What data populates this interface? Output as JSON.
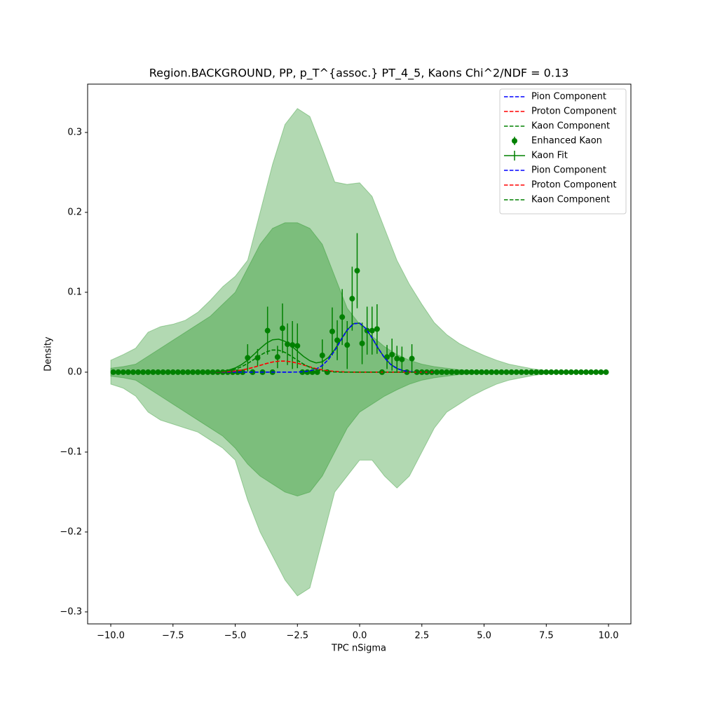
{
  "chart_data": {
    "type": "line",
    "title": "Region.BACKGROUND, PP, p_T^{assoc.} PT_4_5, Kaons Chi^2/NDF = 0.13",
    "xlabel": "TPC nSigma",
    "ylabel": "Density",
    "xlim": [
      -10.93,
      10.9
    ],
    "ylim": [
      -0.315,
      0.3605
    ],
    "xticks": [
      {
        "value": -10,
        "label": "−10.0"
      },
      {
        "value": -7.5,
        "label": "−7.5"
      },
      {
        "value": -5,
        "label": "−5.0"
      },
      {
        "value": -2.5,
        "label": "−2.5"
      },
      {
        "value": 0,
        "label": "0.0"
      },
      2.5,
      {
        "value": 5,
        "label": "5.0"
      },
      7.5,
      {
        "value": 10,
        "label": "10.0"
      }
    ],
    "yticks": [
      {
        "value": -0.3,
        "label": "−0.3"
      },
      {
        "value": -0.2,
        "label": "−0.2"
      },
      {
        "value": -0.1,
        "label": "−0.1"
      },
      {
        "value": 0,
        "label": "0.0"
      },
      0.1,
      0.2,
      0.3
    ],
    "legend": "upper right",
    "areas": [
      {
        "color": "#008000",
        "opacity": 0.3,
        "x": [
          -10,
          -9.5,
          -9,
          -8.5,
          -8,
          -7.5,
          -7,
          -6.5,
          -6,
          -5.5,
          -5,
          -4.5,
          -4,
          -3.5,
          -3,
          -2.5,
          -2,
          -1.5,
          -1,
          -0.5,
          0,
          0.5,
          1,
          1.5,
          2,
          2.5,
          3,
          3.5,
          4,
          4.5,
          5,
          5.5,
          6,
          6.5,
          7,
          7.5,
          8,
          8.5,
          9,
          9.5,
          10
        ],
        "upper": [
          0.015,
          0.022,
          0.03,
          0.05,
          0.057,
          0.06,
          0.065,
          0.075,
          0.09,
          0.107,
          0.12,
          0.14,
          0.2,
          0.26,
          0.31,
          0.33,
          0.32,
          0.28,
          0.238,
          0.235,
          0.237,
          0.22,
          0.18,
          0.14,
          0.11,
          0.085,
          0.062,
          0.047,
          0.036,
          0.028,
          0.021,
          0.015,
          0.01,
          0.007,
          0.004,
          0.002,
          0.001,
          0.0005,
          0.0005,
          0.0005,
          0.0005
        ],
        "lower": [
          -0.015,
          -0.02,
          -0.03,
          -0.05,
          -0.06,
          -0.065,
          -0.07,
          -0.075,
          -0.085,
          -0.095,
          -0.11,
          -0.16,
          -0.2,
          -0.23,
          -0.26,
          -0.28,
          -0.27,
          -0.21,
          -0.15,
          -0.13,
          -0.11,
          -0.11,
          -0.13,
          -0.145,
          -0.13,
          -0.1,
          -0.07,
          -0.05,
          -0.04,
          -0.03,
          -0.022,
          -0.015,
          -0.01,
          -0.007,
          -0.004,
          -0.002,
          -0.001,
          -0.0005,
          -0.0005,
          -0.0005,
          -0.0005
        ]
      },
      {
        "color": "#008000",
        "opacity": 0.3,
        "x": [
          -10,
          -9.5,
          -9,
          -8.5,
          -8,
          -7.5,
          -7,
          -6.5,
          -6,
          -5.5,
          -5,
          -4.5,
          -4,
          -3.5,
          -3,
          -2.5,
          -2,
          -1.5,
          -1,
          -0.5,
          0,
          0.5,
          1,
          1.5,
          2,
          2.5,
          3,
          3.5,
          4,
          4.5,
          5,
          5.5,
          6,
          6.5,
          7,
          7.5,
          8,
          8.5,
          9,
          9.5,
          10
        ],
        "upper": [
          0.005,
          0.007,
          0.01,
          0.02,
          0.03,
          0.04,
          0.05,
          0.06,
          0.07,
          0.085,
          0.1,
          0.13,
          0.16,
          0.18,
          0.187,
          0.187,
          0.18,
          0.16,
          0.12,
          0.08,
          0.06,
          0.045,
          0.032,
          0.022,
          0.015,
          0.01,
          0.007,
          0.005,
          0.003,
          0.002,
          0.0015,
          0.001,
          0.001,
          0.0008,
          0.0005,
          0.0003,
          0.0002,
          0.0002,
          0.0002,
          0.0002,
          0.0002
        ],
        "lower": [
          -0.005,
          -0.007,
          -0.01,
          -0.02,
          -0.03,
          -0.04,
          -0.05,
          -0.06,
          -0.07,
          -0.08,
          -0.095,
          -0.115,
          -0.13,
          -0.14,
          -0.15,
          -0.155,
          -0.15,
          -0.13,
          -0.1,
          -0.07,
          -0.05,
          -0.04,
          -0.03,
          -0.022,
          -0.015,
          -0.01,
          -0.007,
          -0.005,
          -0.003,
          -0.002,
          -0.0015,
          -0.001,
          -0.001,
          -0.0008,
          -0.0005,
          -0.0003,
          -0.0002,
          -0.0002,
          -0.0002,
          -0.0002,
          -0.0002
        ]
      }
    ],
    "curve_x": [
      -6,
      -5.75,
      -5.5,
      -5.25,
      -5,
      -4.75,
      -4.5,
      -4.25,
      -4,
      -3.75,
      -3.5,
      -3.25,
      -3,
      -2.75,
      -2.5,
      -2.25,
      -2,
      -1.75,
      -1.5,
      -1.25,
      -1,
      -0.75,
      -0.5,
      -0.25,
      0,
      0.25,
      0.5,
      0.75,
      1,
      1.25,
      1.5,
      1.75,
      2,
      2.25,
      2.5,
      2.75,
      3
    ],
    "series": [
      {
        "name": "Pion Component",
        "color": "#0000ff",
        "linestyle": "dashed",
        "values": [
          0,
          0,
          0,
          0,
          0,
          0,
          0,
          0,
          0,
          0,
          0,
          0,
          0,
          0.0001,
          0.0002,
          0.0006,
          0.0016,
          0.0038,
          0.0084,
          0.0161,
          0.0271,
          0.0403,
          0.0527,
          0.0606,
          0.0614,
          0.0547,
          0.043,
          0.0297,
          0.018,
          0.0097,
          0.0046,
          0.0019,
          0.0007,
          0.0002,
          0.0001,
          0,
          0
        ]
      },
      {
        "name": "Proton Component",
        "color": "#ff0000",
        "linestyle": "dashed",
        "values": [
          0.0001,
          0.0002,
          0.0004,
          0.0008,
          0.0015,
          0.0026,
          0.0042,
          0.0062,
          0.0085,
          0.0108,
          0.0127,
          0.0138,
          0.0139,
          0.013,
          0.0112,
          0.009,
          0.0066,
          0.0045,
          0.0029,
          0.0017,
          0.0009,
          0.0005,
          0.0002,
          0.0001,
          0,
          0,
          0,
          0,
          0,
          0,
          0,
          0,
          0,
          0,
          0,
          0,
          0
        ]
      },
      {
        "name": "Kaon Component",
        "color": "#008000",
        "linestyle": "dashed",
        "values": [
          0.0001,
          0.0004,
          0.0009,
          0.0019,
          0.0038,
          0.0068,
          0.0109,
          0.0159,
          0.0211,
          0.0254,
          0.0278,
          0.0275,
          0.0247,
          0.0201,
          0.0149,
          0.01,
          0.0061,
          0.0033,
          0.0017,
          0.0008,
          0.0003,
          0.0001,
          0,
          0,
          0,
          0,
          0,
          0,
          0,
          0,
          0,
          0,
          0,
          0,
          0,
          0,
          0
        ]
      },
      {
        "name": "Enhanced Kaon",
        "color": "#008000",
        "marker": "o",
        "x": [
          -9.9,
          -9.7,
          -9.5,
          -9.3,
          -9.1,
          -8.9,
          -8.7,
          -8.5,
          -8.3,
          -8.1,
          -7.9,
          -7.7,
          -7.5,
          -7.3,
          -7.1,
          -6.9,
          -6.7,
          -6.5,
          -6.3,
          -6.1,
          -5.9,
          -5.7,
          -5.5,
          -5.3,
          -5.1,
          -4.9,
          -4.7,
          -4.5,
          -4.3,
          -4.1,
          -3.9,
          -3.7,
          -3.5,
          -3.3,
          -3.1,
          -2.9,
          -2.7,
          -2.5,
          -2.3,
          -2.1,
          -1.9,
          -1.7,
          -1.5,
          -1.3,
          -1.1,
          -0.9,
          -0.7,
          -0.5,
          -0.3,
          -0.1,
          0.1,
          0.3,
          0.5,
          0.7,
          0.9,
          1.1,
          1.3,
          1.5,
          1.7,
          1.9,
          2.1,
          2.3,
          2.5,
          2.7,
          2.9,
          3.1,
          3.3,
          3.5,
          3.7,
          3.9,
          4.1,
          4.3,
          4.5,
          4.7,
          4.9,
          5.1,
          5.3,
          5.5,
          5.7,
          5.9,
          6.1,
          6.3,
          6.5,
          6.7,
          6.9,
          7.1,
          7.3,
          7.5,
          7.7,
          7.9,
          8.1,
          8.3,
          8.5,
          8.7,
          8.9,
          9.1,
          9.3,
          9.5,
          9.7,
          9.9
        ],
        "values": [
          0,
          0,
          0,
          0,
          0,
          0,
          0,
          0,
          0,
          0,
          0,
          0,
          0,
          0,
          0,
          0,
          0,
          0,
          0,
          0,
          0,
          0,
          0,
          0,
          0,
          0,
          0,
          0.018,
          0,
          0.018,
          0,
          0.052,
          0,
          0.019,
          0.055,
          0.035,
          0.034,
          0.033,
          0,
          0,
          0,
          0,
          0.021,
          0,
          0.051,
          0.04,
          0.069,
          0.034,
          0.092,
          0.127,
          0.036,
          0.052,
          0.052,
          0.054,
          0,
          0.019,
          0.022,
          0.017,
          0.016,
          0,
          0.017,
          0,
          0,
          0,
          0,
          0,
          0,
          0,
          0,
          0,
          0,
          0,
          0,
          0,
          0,
          0,
          0,
          0,
          0,
          0,
          0,
          0,
          0,
          0,
          0,
          0,
          0,
          0,
          0,
          0,
          0,
          0,
          0,
          0,
          0,
          0,
          0,
          0,
          0,
          0
        ],
        "errors": [
          0,
          0,
          0,
          0,
          0,
          0,
          0,
          0,
          0,
          0,
          0,
          0,
          0,
          0,
          0,
          0,
          0,
          0,
          0,
          0,
          0,
          0,
          0,
          0,
          0,
          0,
          0,
          0.017,
          0,
          0.011,
          0,
          0.03,
          0,
          0.014,
          0.031,
          0.026,
          0.03,
          0.028,
          0,
          0,
          0,
          0,
          0.02,
          0,
          0.03,
          0.025,
          0.035,
          0.03,
          0.04,
          0.047,
          0.026,
          0.03,
          0.03,
          0.031,
          0,
          0.015,
          0.02,
          0.016,
          0.016,
          0,
          0.018,
          0,
          0,
          0,
          0,
          0,
          0,
          0,
          0,
          0,
          0,
          0,
          0,
          0,
          0,
          0,
          0,
          0,
          0,
          0,
          0,
          0,
          0,
          0,
          0,
          0,
          0,
          0,
          0,
          0,
          0,
          0,
          0,
          0,
          0,
          0,
          0,
          0,
          0,
          0
        ]
      },
      {
        "name": "Kaon Fit",
        "color": "#008000",
        "linestyle": "solid",
        "values": [
          0.0002,
          0.0006,
          0.0013,
          0.0027,
          0.0053,
          0.0094,
          0.0151,
          0.0221,
          0.0296,
          0.0362,
          0.0405,
          0.0413,
          0.0386,
          0.0331,
          0.0263,
          0.0196,
          0.0143,
          0.0116,
          0.013,
          0.0186,
          0.0283,
          0.0409,
          0.0529,
          0.0607,
          0.0614,
          0.0547,
          0.043,
          0.0297,
          0.018,
          0.0097,
          0.0046,
          0.0019,
          0.0007,
          0.0002,
          0.0001,
          0,
          0
        ]
      },
      {
        "name": "Pion Component",
        "color": "#0000ff",
        "linestyle": "dashed",
        "values": [
          0,
          0,
          0,
          0,
          0,
          0,
          0,
          0,
          0,
          0,
          0,
          0,
          0,
          0.0001,
          0.0002,
          0.0006,
          0.0016,
          0.0038,
          0.0084,
          0.0161,
          0.0271,
          0.0403,
          0.0527,
          0.0606,
          0.0614,
          0.0547,
          0.043,
          0.0297,
          0.018,
          0.0097,
          0.0046,
          0.0019,
          0.0007,
          0.0002,
          0.0001,
          0,
          0
        ]
      },
      {
        "name": "Proton Component",
        "color": "#ff0000",
        "linestyle": "dashed",
        "values": [
          0.0001,
          0.0002,
          0.0004,
          0.0008,
          0.0015,
          0.0026,
          0.0042,
          0.0062,
          0.0085,
          0.0108,
          0.0127,
          0.0138,
          0.0139,
          0.013,
          0.0112,
          0.009,
          0.0066,
          0.0045,
          0.0029,
          0.0017,
          0.0009,
          0.0005,
          0.0002,
          0.0001,
          0,
          0,
          0,
          0,
          0,
          0,
          0,
          0,
          0,
          0,
          0,
          0,
          0
        ]
      },
      {
        "name": "Kaon Component",
        "color": "#008000",
        "linestyle": "dashed",
        "values": [
          0.0001,
          0.0004,
          0.0009,
          0.0019,
          0.0038,
          0.0068,
          0.0109,
          0.0159,
          0.0211,
          0.0254,
          0.0278,
          0.0275,
          0.0247,
          0.0201,
          0.0149,
          0.01,
          0.0061,
          0.0033,
          0.0017,
          0.0008,
          0.0003,
          0.0001,
          0,
          0,
          0,
          0,
          0,
          0,
          0,
          0,
          0,
          0,
          0,
          0,
          0,
          0,
          0
        ]
      }
    ]
  }
}
